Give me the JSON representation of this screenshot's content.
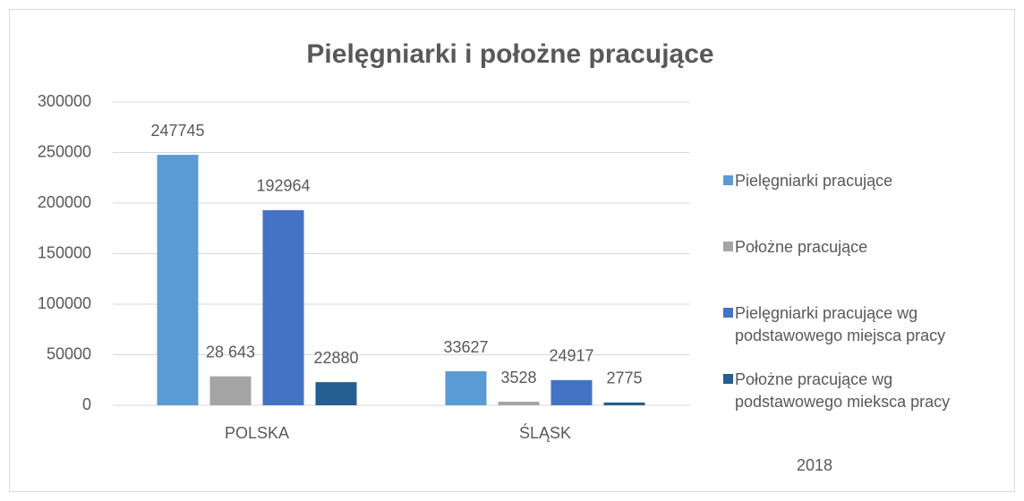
{
  "chart_data": {
    "type": "bar",
    "title": "Pielęgniarki i położne pracujące",
    "categories": [
      "POLSKA",
      "ŚLĄSK"
    ],
    "series": [
      {
        "name": "Pielęgniarki pracujące",
        "color": "#5b9bd5",
        "values": [
          247745,
          33627
        ]
      },
      {
        "name": "Położne pracujące",
        "color": "#a5a5a5",
        "values": [
          28643,
          3528
        ],
        "value_labels": [
          "28 643",
          "3528"
        ]
      },
      {
        "name": "Pielęgniarki pracujące wg podstawowego miejsca pracy",
        "color": "#4472c4",
        "values": [
          192964,
          24917
        ]
      },
      {
        "name": "Położne pracujące wg podstawowego mieksca pracy",
        "color": "#255e91",
        "values": [
          22880,
          2775
        ]
      }
    ],
    "ylim": [
      0,
      300000
    ],
    "yticks": [
      0,
      50000,
      100000,
      150000,
      200000,
      250000,
      300000
    ],
    "grid": true,
    "legend": "right",
    "annotation": "2018"
  }
}
